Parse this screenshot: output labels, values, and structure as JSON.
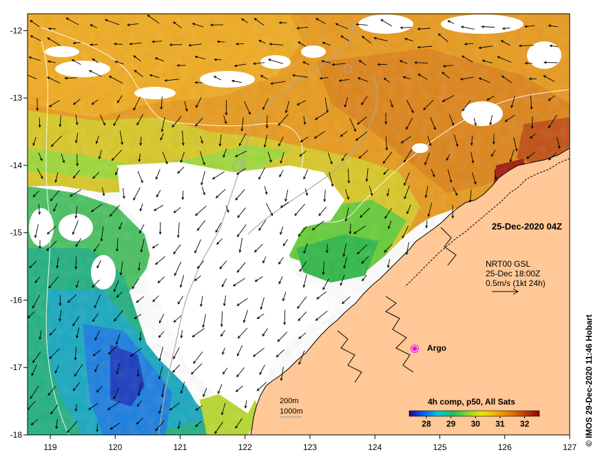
{
  "map": {
    "date_label": "25-Dec-2020 04Z",
    "current_label": {
      "line1": "NRT00 GSL",
      "line2": "25-Dec 18:00Z",
      "line3": "0.5m/s (1kt 24h)"
    },
    "argo_label": "Argo",
    "depth_contours": {
      "shallow": "200m",
      "deep": "1000m"
    },
    "colorbar": {
      "title": "4h comp, p50, All Sats",
      "ticks": [
        "28",
        "29",
        "30",
        "31",
        "32"
      ],
      "min": 27.3,
      "max": 32.6,
      "colors": [
        "#1a0a8c",
        "#0060ff",
        "#00c8d8",
        "#18c060",
        "#7fd830",
        "#e8e800",
        "#f0b000",
        "#e07800",
        "#c04000",
        "#900000"
      ]
    },
    "x_ticks": [
      "119",
      "120",
      "121",
      "122",
      "123",
      "124",
      "125",
      "126",
      "127"
    ],
    "y_ticks": [
      "-12",
      "-13",
      "-14",
      "-15",
      "-16",
      "-17",
      "-18"
    ],
    "credit": "© IMOS 29-Dec-2020 11:46 Hobart",
    "colors": {
      "land": "#ffc896",
      "coast": "#000000",
      "argo": "#ff00ff"
    }
  }
}
